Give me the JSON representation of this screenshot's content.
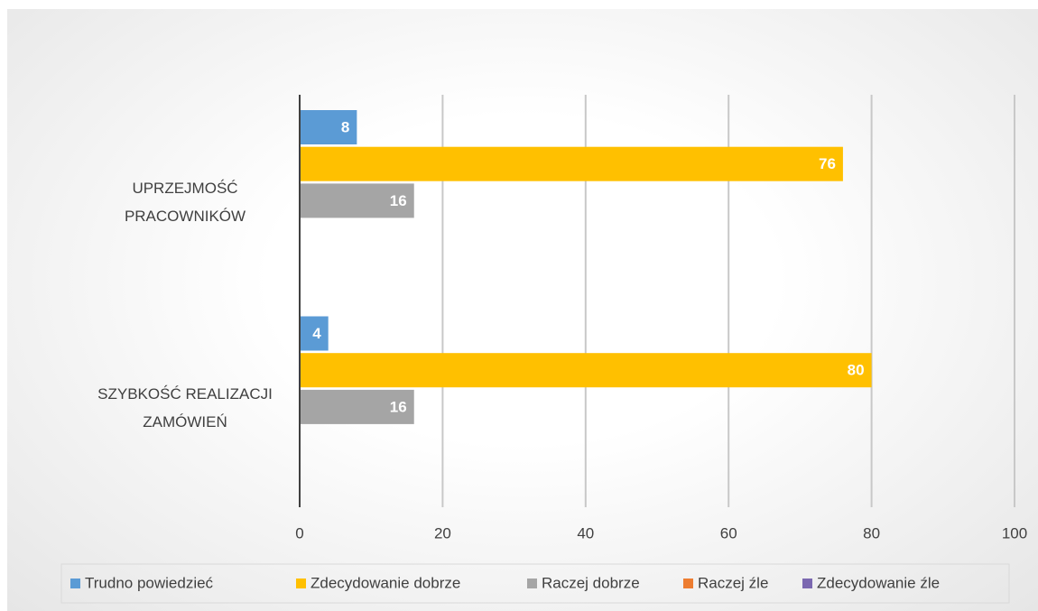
{
  "chart_data": {
    "type": "barh",
    "categories": [
      "UPRZEJMOŚĆ\nPRACOWNIKÓW",
      "SZYBKOŚĆ REALIZACJI\nZAMÓWIEŃ"
    ],
    "series": [
      {
        "name": "Trudno powiedzieć",
        "color": "#5b9bd5",
        "values": [
          8,
          4
        ]
      },
      {
        "name": "Zdecydowanie dobrze",
        "color": "#ffc000",
        "values": [
          76,
          80
        ]
      },
      {
        "name": "Raczej dobrze",
        "color": "#a5a5a5",
        "values": [
          16,
          16
        ]
      },
      {
        "name": "Raczej źle",
        "color": "#ed7d31",
        "values": [
          0,
          0
        ]
      },
      {
        "name": "Zdecydowanie źle",
        "color": "#7b68b0",
        "values": [
          0,
          0
        ]
      }
    ],
    "xlim": [
      0,
      100
    ],
    "xticks": [
      0,
      20,
      40,
      60,
      80,
      100
    ],
    "grid": true,
    "legend": "bottom"
  }
}
